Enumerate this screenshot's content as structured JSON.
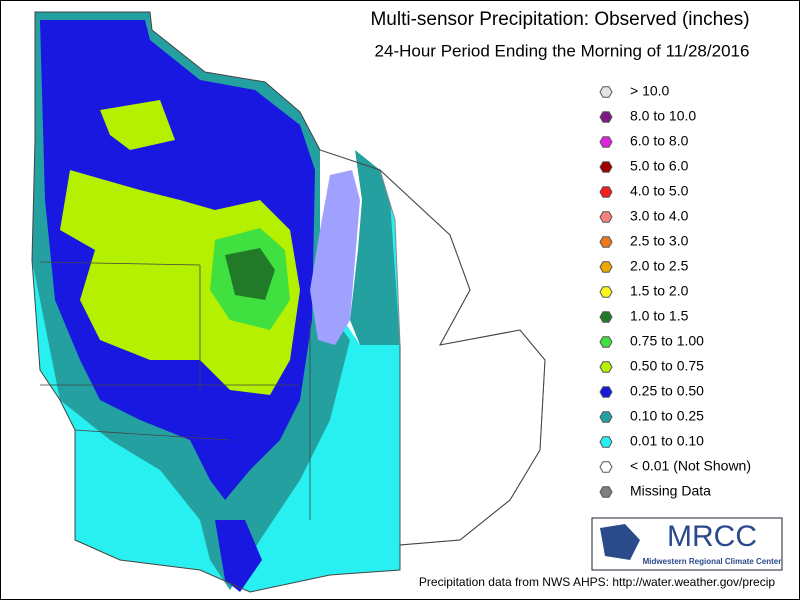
{
  "header": {
    "title": "Multi-sensor Precipitation:  Observed (inches)",
    "subtitle": "24-Hour Period Ending the Morning of 11/28/2016"
  },
  "legend": {
    "items": [
      {
        "label": "> 10.0",
        "color": "#e4e4e4"
      },
      {
        "label": "8.0 to 10.0",
        "color": "#7a1a82"
      },
      {
        "label": "6.0 to 8.0",
        "color": "#e022e0"
      },
      {
        "label": "5.0 to 6.0",
        "color": "#a00000"
      },
      {
        "label": "4.0 to 5.0",
        "color": "#f02020"
      },
      {
        "label": "3.0 to 4.0",
        "color": "#f88080"
      },
      {
        "label": "2.5 to 3.0",
        "color": "#f07818"
      },
      {
        "label": "2.0 to 2.5",
        "color": "#f0a800"
      },
      {
        "label": "1.5 to 2.0",
        "color": "#f8f820"
      },
      {
        "label": "1.0 to 1.5",
        "color": "#207a28"
      },
      {
        "label": "0.75 to 1.00",
        "color": "#40e040"
      },
      {
        "label": "0.50 to 0.75",
        "color": "#b4f000"
      },
      {
        "label": "0.25 to 0.50",
        "color": "#1818e0"
      },
      {
        "label": "0.10 to 0.25",
        "color": "#24a0a0"
      },
      {
        "label": "0.01 to 0.10",
        "color": "#28f0f0"
      },
      {
        "label": "< 0.01 (Not Shown)",
        "color": "#ffffff"
      },
      {
        "label": "Missing Data",
        "color": "#808080"
      }
    ]
  },
  "logo": {
    "name": "MRCC",
    "full_name": "Midwestern Regional Climate Center"
  },
  "footer": "Precipitation data from NWS AHPS: http://water.weather.gov/precip"
}
